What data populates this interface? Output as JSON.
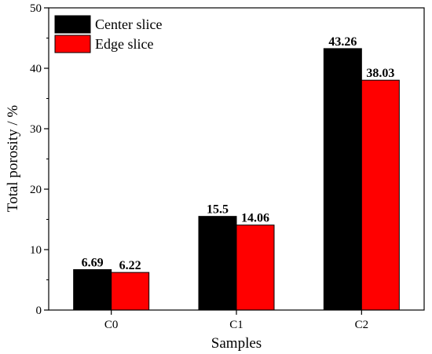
{
  "chart_data": {
    "type": "bar",
    "categories": [
      "C0",
      "C1",
      "C2"
    ],
    "series": [
      {
        "name": "Center slice",
        "color": "#000000",
        "values": [
          6.69,
          15.5,
          43.26
        ],
        "labels": [
          "6.69",
          "15.5",
          "43.26"
        ]
      },
      {
        "name": "Edge slice",
        "color": "#ff0000",
        "values": [
          6.22,
          14.06,
          38.03
        ],
        "labels": [
          "6.22",
          "14.06",
          "38.03"
        ]
      }
    ],
    "xlabel": "Samples",
    "ylabel": "Total porosity / %",
    "ylim": [
      0,
      50
    ],
    "yticks": [
      "0",
      "10",
      "20",
      "30",
      "40",
      "50"
    ],
    "grid": false,
    "legend_position": "top-left"
  }
}
